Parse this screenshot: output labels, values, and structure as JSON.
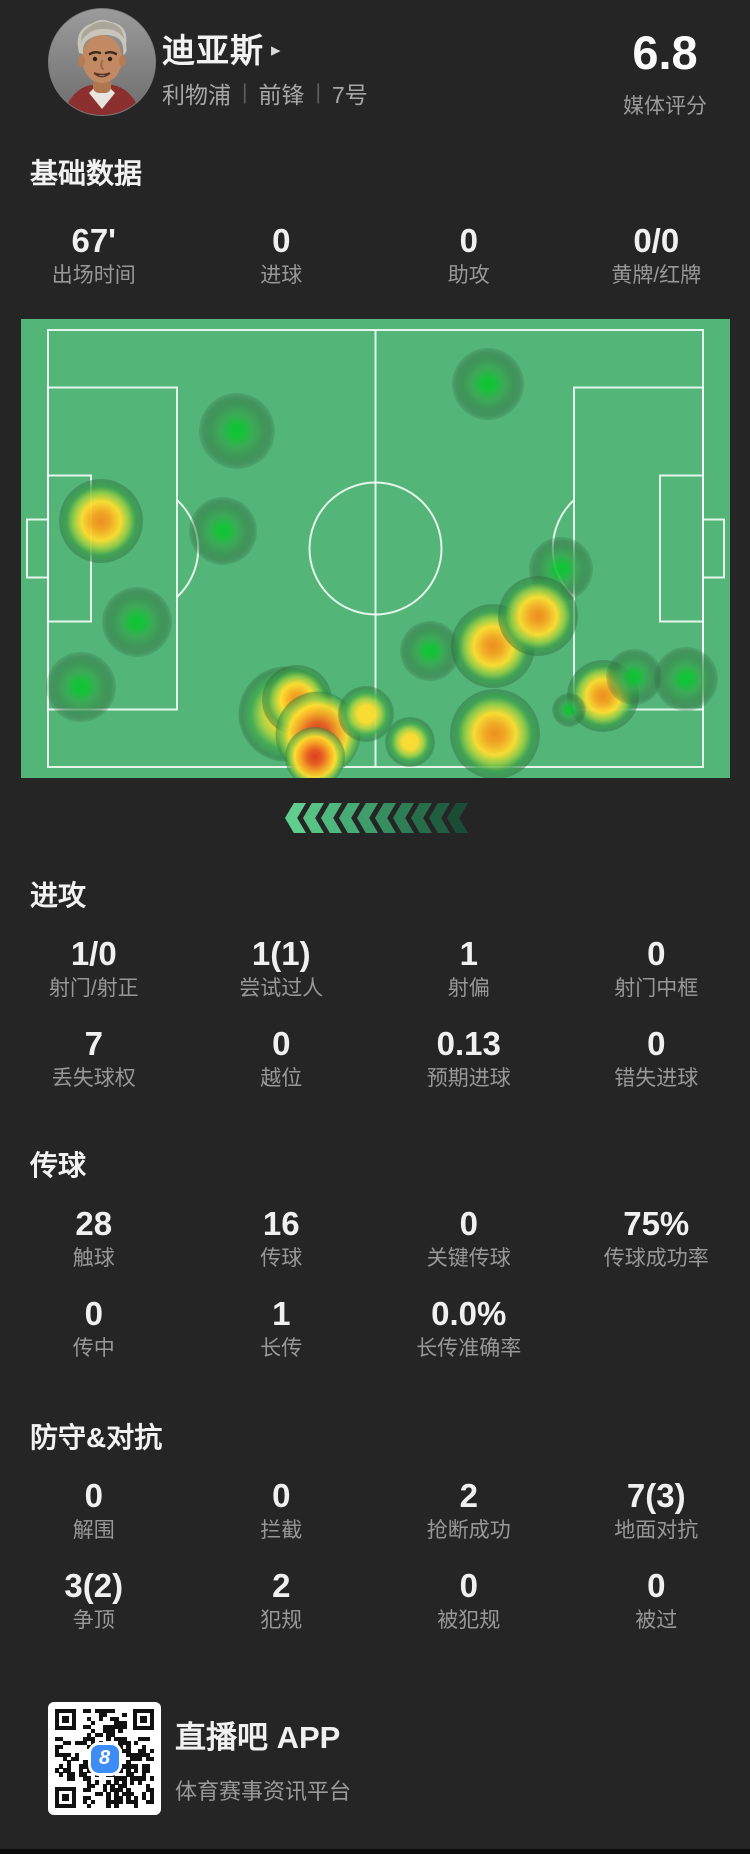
{
  "header": {
    "player_name": "迪亚斯",
    "name_arrow": "▸",
    "team": "利物浦",
    "separator": "|",
    "position": "前锋",
    "number": "7号",
    "rating": "6.8",
    "rating_label": "媒体评分"
  },
  "sections": {
    "basic": {
      "title": "基础数据",
      "items": [
        {
          "key": "minutes",
          "value": "67'",
          "label": "出场时间"
        },
        {
          "key": "goals",
          "value": "0",
          "label": "进球"
        },
        {
          "key": "assists",
          "value": "0",
          "label": "助攻"
        },
        {
          "key": "cards",
          "value": "0/0",
          "label": "黄牌/红牌"
        }
      ]
    },
    "attack": {
      "title": "进攻",
      "items": [
        {
          "key": "shots",
          "value": "1/0",
          "label": "射门/射正"
        },
        {
          "key": "dribbles",
          "value": "1(1)",
          "label": "尝试过人"
        },
        {
          "key": "shots-off",
          "value": "1",
          "label": "射偏"
        },
        {
          "key": "woodwork",
          "value": "0",
          "label": "射门中框"
        },
        {
          "key": "possession-lost",
          "value": "7",
          "label": "丢失球权"
        },
        {
          "key": "offsides",
          "value": "0",
          "label": "越位"
        },
        {
          "key": "xg",
          "value": "0.13",
          "label": "预期进球"
        },
        {
          "key": "chances-missed",
          "value": "0",
          "label": "错失进球"
        }
      ]
    },
    "passing": {
      "title": "传球",
      "items": [
        {
          "key": "touches",
          "value": "28",
          "label": "触球"
        },
        {
          "key": "passes",
          "value": "16",
          "label": "传球"
        },
        {
          "key": "key-passes",
          "value": "0",
          "label": "关键传球"
        },
        {
          "key": "pass-accuracy",
          "value": "75%",
          "label": "传球成功率"
        },
        {
          "key": "crosses",
          "value": "0",
          "label": "传中"
        },
        {
          "key": "long-balls",
          "value": "1",
          "label": "长传"
        },
        {
          "key": "long-ball-accuracy",
          "value": "0.0%",
          "label": "长传准确率"
        }
      ]
    },
    "defense": {
      "title": "防守&对抗",
      "items": [
        {
          "key": "clearances",
          "value": "0",
          "label": "解围"
        },
        {
          "key": "interceptions",
          "value": "0",
          "label": "拦截"
        },
        {
          "key": "tackles-won",
          "value": "2",
          "label": "抢断成功"
        },
        {
          "key": "ground-duels",
          "value": "7(3)",
          "label": "地面对抗"
        },
        {
          "key": "aerial-duels",
          "value": "3(2)",
          "label": "争顶"
        },
        {
          "key": "fouls",
          "value": "2",
          "label": "犯规"
        },
        {
          "key": "fouled",
          "value": "0",
          "label": "被犯规"
        },
        {
          "key": "dribbled-past",
          "value": "0",
          "label": "被过"
        }
      ]
    }
  },
  "heatmap": {
    "pitch_color": "#53b678",
    "line_color": "rgba(255,255,255,0.85)",
    "points": [
      {
        "x": 66.0,
        "y": 14.2,
        "d": 72,
        "level": "green"
      },
      {
        "x": 30.6,
        "y": 24.4,
        "d": 76,
        "level": "green"
      },
      {
        "x": 11.4,
        "y": 44.0,
        "d": 84,
        "level": "orange"
      },
      {
        "x": 28.5,
        "y": 46.2,
        "d": 68,
        "level": "green"
      },
      {
        "x": 76.2,
        "y": 54.5,
        "d": 64,
        "level": "green"
      },
      {
        "x": 16.4,
        "y": 66.0,
        "d": 70,
        "level": "green"
      },
      {
        "x": 8.6,
        "y": 80.2,
        "d": 70,
        "level": "green"
      },
      {
        "x": 37.5,
        "y": 86.0,
        "d": 95,
        "level": "yellow"
      },
      {
        "x": 39.0,
        "y": 83.0,
        "d": 70,
        "level": "orange"
      },
      {
        "x": 42.0,
        "y": 90.5,
        "d": 85,
        "level": "red"
      },
      {
        "x": 41.5,
        "y": 95.5,
        "d": 60,
        "level": "red"
      },
      {
        "x": 48.7,
        "y": 86.1,
        "d": 56,
        "level": "yellow"
      },
      {
        "x": 55.0,
        "y": 92.2,
        "d": 50,
        "level": "yellow"
      },
      {
        "x": 57.7,
        "y": 72.3,
        "d": 60,
        "level": "green"
      },
      {
        "x": 66.6,
        "y": 71.2,
        "d": 84,
        "level": "orange"
      },
      {
        "x": 73.0,
        "y": 64.7,
        "d": 80,
        "level": "orange"
      },
      {
        "x": 66.9,
        "y": 90.4,
        "d": 90,
        "level": "orange"
      },
      {
        "x": 82.1,
        "y": 82.1,
        "d": 72,
        "level": "orange"
      },
      {
        "x": 77.4,
        "y": 85.2,
        "d": 34,
        "level": "green"
      },
      {
        "x": 86.5,
        "y": 78.0,
        "d": 56,
        "level": "green"
      },
      {
        "x": 93.9,
        "y": 78.4,
        "d": 64,
        "level": "green"
      }
    ]
  },
  "chevrons": {
    "direction": "left",
    "colors": [
      "#5ecd8e",
      "#56c385",
      "#4eb87d",
      "#46ab74",
      "#3e9d6a",
      "#368e60",
      "#2e7e55",
      "#276d4a",
      "#215d40",
      "#1b4d36"
    ]
  },
  "footer": {
    "app_name": "直播吧 APP",
    "tagline": "体育赛事资讯平台",
    "qr_badge": "8",
    "badge_color": "#3e8df5"
  }
}
